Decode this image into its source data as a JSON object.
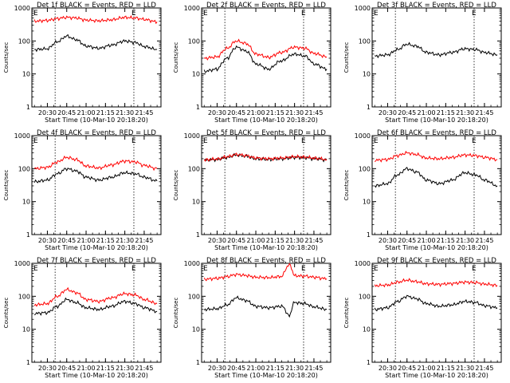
{
  "window": {
    "background": "#ffffff"
  },
  "chart_data": {
    "type": "line",
    "panel_grid": "3x3",
    "shared": {
      "ylabel": "Counts/sec",
      "xlabel": "Start Time (10-Mar-10 20:18:20)",
      "y_scale": "log",
      "ylim": [
        1,
        1000
      ],
      "y_ticks": [
        "1",
        "10",
        "100",
        "1000"
      ],
      "x_ticks": [
        "20:30",
        "20:45",
        "21:00",
        "21:15",
        "21:30",
        "21:45"
      ],
      "series_colors": {
        "events": "#000000",
        "lld": "#ff0000"
      },
      "marker_letter": "E",
      "dashed_vertical_lines_at": [
        "20:36",
        "21:37"
      ]
    },
    "panels": [
      {
        "title": "Det 1f BLACK = Events, RED = LLD",
        "x": [
          "20:20",
          "20:30",
          "20:38",
          "20:45",
          "20:52",
          "21:00",
          "21:10",
          "21:20",
          "21:30",
          "21:38",
          "21:45",
          "21:55"
        ],
        "series": [
          {
            "values": [
              55,
              58,
              95,
              140,
              110,
              70,
              60,
              75,
              100,
              90,
              68,
              55
            ]
          },
          {
            "values": [
              400,
              420,
              480,
              520,
              500,
              430,
              410,
              440,
              520,
              500,
              450,
              380
            ]
          }
        ]
      },
      {
        "title": "Det 2f BLACK = Events, RED = LLD",
        "x": [
          "20:20",
          "20:30",
          "20:38",
          "20:45",
          "20:52",
          "21:00",
          "21:10",
          "21:20",
          "21:30",
          "21:38",
          "21:45",
          "21:55"
        ],
        "series": [
          {
            "values": [
              12,
              14,
              30,
              65,
              50,
              20,
              14,
              25,
              40,
              35,
              20,
              14
            ]
          },
          {
            "values": [
              30,
              33,
              60,
              100,
              85,
              40,
              32,
              45,
              65,
              60,
              42,
              33
            ]
          }
        ]
      },
      {
        "title": "Det 3f BLACK = Events, RED = LLD",
        "x": [
          "20:20",
          "20:30",
          "20:38",
          "20:45",
          "20:52",
          "21:00",
          "21:10",
          "21:20",
          "21:30",
          "21:38",
          "21:45",
          "21:55"
        ],
        "series": [
          {
            "values": [
              35,
              38,
              55,
              80,
              70,
              45,
              38,
              45,
              58,
              55,
              45,
              38
            ]
          }
        ]
      },
      {
        "title": "Det 4f BLACK = Events, RED = LLD",
        "x": [
          "20:20",
          "20:30",
          "20:38",
          "20:45",
          "20:52",
          "21:00",
          "21:10",
          "21:20",
          "21:30",
          "21:38",
          "21:45",
          "21:55"
        ],
        "series": [
          {
            "values": [
              40,
              45,
              70,
              100,
              85,
              55,
              45,
              55,
              75,
              70,
              55,
              42
            ]
          },
          {
            "values": [
              100,
              110,
              160,
              220,
              190,
              120,
              105,
              130,
              170,
              160,
              125,
              100
            ]
          }
        ]
      },
      {
        "title": "Det 5f BLACK = Events, RED = LLD",
        "x": [
          "20:20",
          "20:30",
          "20:38",
          "20:45",
          "20:52",
          "21:00",
          "21:10",
          "21:20",
          "21:30",
          "21:38",
          "21:45",
          "21:55"
        ],
        "series": [
          {
            "values": [
              180,
              190,
              220,
              260,
              240,
              200,
              190,
              200,
              220,
              215,
              200,
              185
            ]
          },
          {
            "values": [
              185,
              195,
              230,
              270,
              250,
              210,
              200,
              210,
              230,
              225,
              210,
              190
            ]
          }
        ]
      },
      {
        "title": "Det 6f BLACK = Events, RED = LLD",
        "x": [
          "20:20",
          "20:30",
          "20:38",
          "20:45",
          "20:52",
          "21:00",
          "21:10",
          "21:20",
          "21:30",
          "21:38",
          "21:45",
          "21:55"
        ],
        "series": [
          {
            "values": [
              30,
              35,
              65,
              100,
              80,
              45,
              35,
              45,
              75,
              65,
              45,
              30
            ]
          },
          {
            "values": [
              180,
              190,
              250,
              300,
              270,
              210,
              200,
              220,
              260,
              250,
              220,
              190
            ]
          }
        ]
      },
      {
        "title": "Det 7f BLACK = Events, RED = LLD",
        "x": [
          "20:20",
          "20:30",
          "20:38",
          "20:45",
          "20:52",
          "21:00",
          "21:10",
          "21:20",
          "21:30",
          "21:38",
          "21:45",
          "21:55"
        ],
        "series": [
          {
            "values": [
              30,
              32,
              50,
              80,
              65,
              45,
              40,
              50,
              70,
              60,
              45,
              35
            ]
          },
          {
            "values": [
              55,
              60,
              100,
              160,
              130,
              80,
              70,
              90,
              120,
              110,
              80,
              60
            ]
          }
        ]
      },
      {
        "title": "Det 8f BLACK = Events, RED = LLD",
        "x": [
          "20:20",
          "20:30",
          "20:38",
          "20:45",
          "20:52",
          "21:00",
          "21:10",
          "21:20",
          "21:26",
          "21:30",
          "21:38",
          "21:45",
          "21:55"
        ],
        "series": [
          {
            "values": [
              40,
              42,
              55,
              90,
              75,
              50,
              45,
              50,
              25,
              65,
              60,
              48,
              40
            ]
          },
          {
            "values": [
              330,
              350,
              400,
              460,
              430,
              380,
              370,
              400,
              900,
              420,
              410,
              380,
              340
            ]
          }
        ]
      },
      {
        "title": "Det 9f BLACK = Events, RED = LLD",
        "x": [
          "20:20",
          "20:30",
          "20:38",
          "20:45",
          "20:52",
          "21:00",
          "21:10",
          "21:20",
          "21:30",
          "21:38",
          "21:45",
          "21:55"
        ],
        "series": [
          {
            "values": [
              40,
              45,
              70,
              100,
              85,
              60,
              50,
              55,
              70,
              65,
              52,
              45
            ]
          },
          {
            "values": [
              210,
              220,
              270,
              310,
              280,
              240,
              230,
              245,
              270,
              260,
              235,
              215
            ]
          }
        ]
      }
    ]
  }
}
